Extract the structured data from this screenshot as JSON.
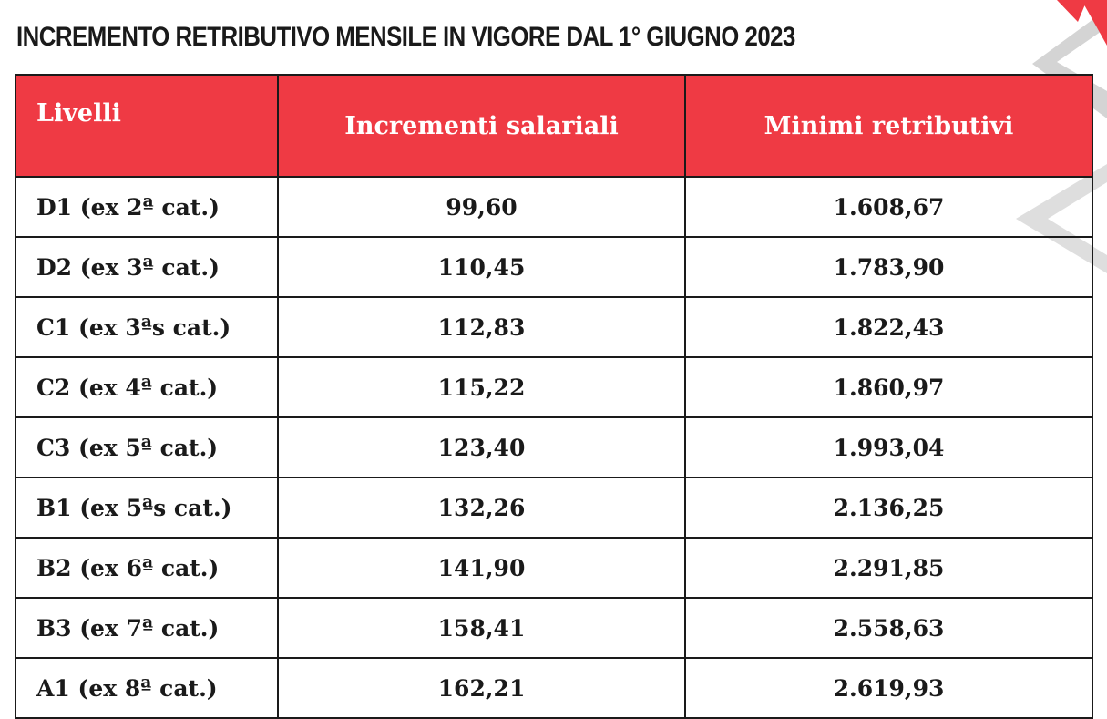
{
  "title": "INCREMENTO RETRIBUTIVO MENSILE IN VIGORE DAL 1° GIUGNO 2023",
  "colors": {
    "header_bg": "#ef3a44",
    "header_text": "#ffffff",
    "border": "#1a1a1a",
    "decor_red": "#ef3a44",
    "decor_gray": "#d4d4d4"
  },
  "table": {
    "headers": [
      "Livelli",
      "Incrementi salariali",
      "Minimi retributivi"
    ],
    "rows": [
      {
        "livello": "D1 (ex 2ª cat.)",
        "incremento": "99,60",
        "minimo": "1.608,67"
      },
      {
        "livello": "D2 (ex 3ª cat.)",
        "incremento": "110,45",
        "minimo": "1.783,90"
      },
      {
        "livello": "C1 (ex 3ªs cat.)",
        "incremento": "112,83",
        "minimo": "1.822,43"
      },
      {
        "livello": "C2 (ex 4ª cat.)",
        "incremento": "115,22",
        "minimo": "1.860,97"
      },
      {
        "livello": "C3 (ex 5ª cat.)",
        "incremento": "123,40",
        "minimo": "1.993,04"
      },
      {
        "livello": "B1 (ex 5ªs cat.)",
        "incremento": "132,26",
        "minimo": "2.136,25"
      },
      {
        "livello": "B2 (ex 6ª cat.)",
        "incremento": "141,90",
        "minimo": "2.291,85"
      },
      {
        "livello": "B3 (ex 7ª cat.)",
        "incremento": "158,41",
        "minimo": "2.558,63"
      },
      {
        "livello": "A1 (ex 8ª cat.)",
        "incremento": "162,21",
        "minimo": "2.619,93"
      }
    ]
  }
}
